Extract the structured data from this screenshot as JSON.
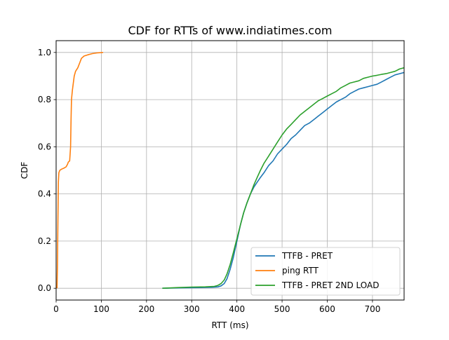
{
  "chart_data": {
    "type": "line",
    "title": "CDF for RTTs of www.indiatimes.com",
    "xlabel": "RTT (ms)",
    "ylabel": "CDF",
    "xlim": [
      0,
      770
    ],
    "ylim": [
      -0.05,
      1.05
    ],
    "x_ticks": [
      0,
      100,
      200,
      300,
      400,
      500,
      600,
      700
    ],
    "y_ticks": [
      0.0,
      0.2,
      0.4,
      0.6,
      0.8,
      1.0
    ],
    "x_tick_labels": [
      "0",
      "100",
      "200",
      "300",
      "400",
      "500",
      "600",
      "700"
    ],
    "y_tick_labels": [
      "0.0",
      "0.2",
      "0.4",
      "0.6",
      "0.8",
      "1.0"
    ],
    "grid": true,
    "legend_position": "lower-right",
    "series": [
      {
        "name": "TTFB - PRET",
        "color": "#1f77b4",
        "points": [
          [
            235,
            0.0
          ],
          [
            260,
            0.001
          ],
          [
            290,
            0.002
          ],
          [
            320,
            0.003
          ],
          [
            345,
            0.004
          ],
          [
            358,
            0.006
          ],
          [
            365,
            0.01
          ],
          [
            372,
            0.02
          ],
          [
            378,
            0.04
          ],
          [
            385,
            0.08
          ],
          [
            392,
            0.13
          ],
          [
            400,
            0.2
          ],
          [
            408,
            0.27
          ],
          [
            415,
            0.32
          ],
          [
            422,
            0.36
          ],
          [
            430,
            0.4
          ],
          [
            438,
            0.43
          ],
          [
            445,
            0.45
          ],
          [
            452,
            0.47
          ],
          [
            460,
            0.49
          ],
          [
            470,
            0.52
          ],
          [
            480,
            0.54
          ],
          [
            490,
            0.57
          ],
          [
            500,
            0.59
          ],
          [
            510,
            0.61
          ],
          [
            520,
            0.635
          ],
          [
            530,
            0.65
          ],
          [
            540,
            0.67
          ],
          [
            550,
            0.69
          ],
          [
            560,
            0.7
          ],
          [
            570,
            0.715
          ],
          [
            580,
            0.73
          ],
          [
            590,
            0.745
          ],
          [
            600,
            0.76
          ],
          [
            610,
            0.775
          ],
          [
            620,
            0.79
          ],
          [
            630,
            0.8
          ],
          [
            640,
            0.81
          ],
          [
            650,
            0.825
          ],
          [
            660,
            0.835
          ],
          [
            670,
            0.845
          ],
          [
            680,
            0.85
          ],
          [
            690,
            0.855
          ],
          [
            700,
            0.86
          ],
          [
            710,
            0.865
          ],
          [
            720,
            0.875
          ],
          [
            730,
            0.885
          ],
          [
            740,
            0.895
          ],
          [
            750,
            0.905
          ],
          [
            760,
            0.91
          ],
          [
            770,
            0.915
          ]
        ]
      },
      {
        "name": "ping RTT",
        "color": "#ff7f0e",
        "points": [
          [
            2,
            0.0
          ],
          [
            3,
            0.1
          ],
          [
            4,
            0.3
          ],
          [
            5,
            0.45
          ],
          [
            6,
            0.49
          ],
          [
            8,
            0.5
          ],
          [
            12,
            0.505
          ],
          [
            18,
            0.51
          ],
          [
            22,
            0.515
          ],
          [
            25,
            0.525
          ],
          [
            27,
            0.535
          ],
          [
            30,
            0.54
          ],
          [
            32,
            0.6
          ],
          [
            33,
            0.72
          ],
          [
            34,
            0.8
          ],
          [
            36,
            0.84
          ],
          [
            38,
            0.87
          ],
          [
            40,
            0.9
          ],
          [
            43,
            0.92
          ],
          [
            48,
            0.935
          ],
          [
            52,
            0.955
          ],
          [
            56,
            0.975
          ],
          [
            62,
            0.985
          ],
          [
            70,
            0.99
          ],
          [
            80,
            0.995
          ],
          [
            90,
            0.998
          ],
          [
            104,
            1.0
          ]
        ]
      },
      {
        "name": "TTFB - PRET 2ND LOAD",
        "color": "#2ca02c",
        "points": [
          [
            235,
            0.0
          ],
          [
            270,
            0.003
          ],
          [
            300,
            0.005
          ],
          [
            330,
            0.006
          ],
          [
            350,
            0.008
          ],
          [
            358,
            0.012
          ],
          [
            365,
            0.02
          ],
          [
            372,
            0.035
          ],
          [
            378,
            0.06
          ],
          [
            385,
            0.1
          ],
          [
            392,
            0.15
          ],
          [
            400,
            0.21
          ],
          [
            408,
            0.27
          ],
          [
            415,
            0.32
          ],
          [
            422,
            0.36
          ],
          [
            430,
            0.4
          ],
          [
            438,
            0.44
          ],
          [
            445,
            0.47
          ],
          [
            452,
            0.5
          ],
          [
            460,
            0.53
          ],
          [
            470,
            0.56
          ],
          [
            480,
            0.59
          ],
          [
            490,
            0.62
          ],
          [
            500,
            0.65
          ],
          [
            510,
            0.675
          ],
          [
            520,
            0.695
          ],
          [
            530,
            0.715
          ],
          [
            540,
            0.735
          ],
          [
            550,
            0.75
          ],
          [
            560,
            0.765
          ],
          [
            570,
            0.78
          ],
          [
            580,
            0.795
          ],
          [
            590,
            0.805
          ],
          [
            600,
            0.815
          ],
          [
            610,
            0.825
          ],
          [
            620,
            0.835
          ],
          [
            630,
            0.85
          ],
          [
            640,
            0.86
          ],
          [
            650,
            0.87
          ],
          [
            660,
            0.875
          ],
          [
            670,
            0.88
          ],
          [
            680,
            0.89
          ],
          [
            690,
            0.895
          ],
          [
            700,
            0.9
          ],
          [
            710,
            0.903
          ],
          [
            720,
            0.907
          ],
          [
            730,
            0.91
          ],
          [
            740,
            0.915
          ],
          [
            750,
            0.92
          ],
          [
            760,
            0.93
          ],
          [
            770,
            0.935
          ]
        ]
      }
    ]
  }
}
